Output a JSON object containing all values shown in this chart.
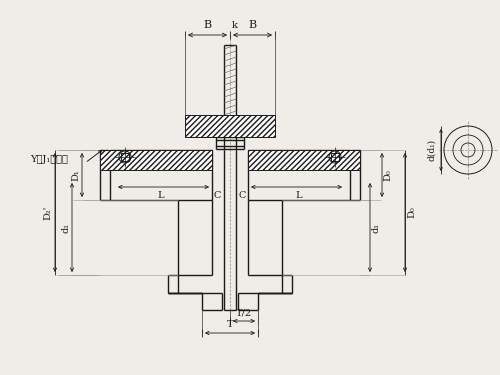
{
  "bg_color": "#f0ede8",
  "line_color": "#1a1a1a",
  "text_color": "#1a1a1a",
  "fig_width": 5.0,
  "fig_height": 3.75,
  "dpi": 100,
  "labels": {
    "B_left": "B",
    "B_right": "B",
    "k": "k",
    "YJ": "Y、J₁型轴孔",
    "L_left": "L",
    "L_right": "L",
    "C_left": "C",
    "C_right": "C",
    "D1_left": "D₁",
    "D2_left": "d₁",
    "d1_left": "D₂",
    "D1_right": "d₁",
    "D0_right": "D₀",
    "T_half": "T/2",
    "T": "T",
    "d_d1": "d(d₁)"
  }
}
